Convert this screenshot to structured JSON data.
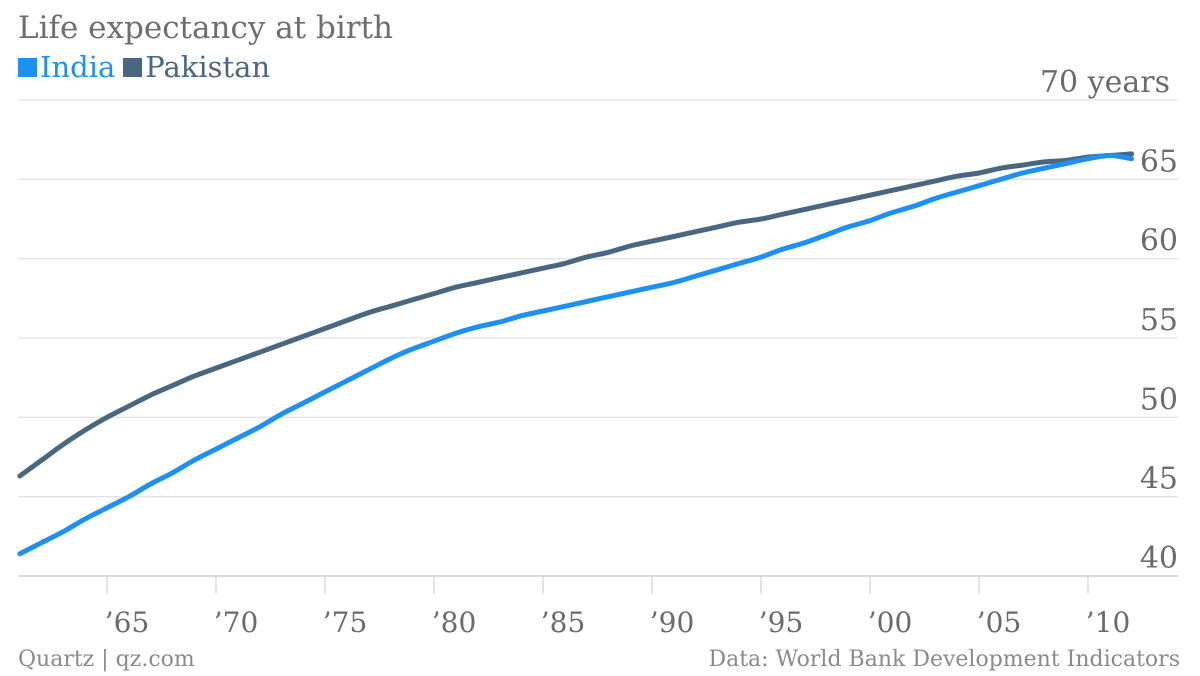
{
  "chart_data": {
    "type": "line",
    "title": "Life expectancy at birth",
    "y_unit_label": "70 years",
    "x": [
      1961,
      1962,
      1963,
      1964,
      1965,
      1966,
      1967,
      1968,
      1969,
      1970,
      1971,
      1972,
      1973,
      1974,
      1975,
      1976,
      1977,
      1978,
      1979,
      1980,
      1981,
      1982,
      1983,
      1984,
      1985,
      1986,
      1987,
      1988,
      1989,
      1990,
      1991,
      1992,
      1993,
      1994,
      1995,
      1996,
      1997,
      1998,
      1999,
      2000,
      2001,
      2002,
      2003,
      2004,
      2005,
      2006,
      2007,
      2008,
      2009,
      2010,
      2011,
      2012
    ],
    "series": [
      {
        "name": "India",
        "color": "#1e90f0",
        "values": [
          41.4,
          42.1,
          42.8,
          43.6,
          44.3,
          45.0,
          45.8,
          46.5,
          47.3,
          48.0,
          48.7,
          49.4,
          50.2,
          50.9,
          51.6,
          52.3,
          53.0,
          53.7,
          54.3,
          54.8,
          55.3,
          55.7,
          56.0,
          56.4,
          56.7,
          57.0,
          57.3,
          57.6,
          57.9,
          58.2,
          58.5,
          58.9,
          59.3,
          59.7,
          60.1,
          60.6,
          61.0,
          61.5,
          62.0,
          62.4,
          62.9,
          63.3,
          63.8,
          64.2,
          64.6,
          65.0,
          65.4,
          65.7,
          66.0,
          66.3,
          66.5,
          66.3
        ]
      },
      {
        "name": "Pakistan",
        "color": "#4a6781",
        "values": [
          46.3,
          47.3,
          48.3,
          49.2,
          50.0,
          50.7,
          51.4,
          52.0,
          52.6,
          53.1,
          53.6,
          54.1,
          54.6,
          55.1,
          55.6,
          56.1,
          56.6,
          57.0,
          57.4,
          57.8,
          58.2,
          58.5,
          58.8,
          59.1,
          59.4,
          59.7,
          60.1,
          60.4,
          60.8,
          61.1,
          61.4,
          61.7,
          62.0,
          62.3,
          62.5,
          62.8,
          63.1,
          63.4,
          63.7,
          64.0,
          64.3,
          64.6,
          64.9,
          65.2,
          65.4,
          65.7,
          65.9,
          66.1,
          66.2,
          66.4,
          66.5,
          66.6
        ]
      }
    ],
    "ylim": [
      40,
      70
    ],
    "yticks": [
      40,
      45,
      50,
      55,
      60,
      65
    ],
    "ytick_labels": [
      "40",
      "45",
      "50",
      "55",
      "60",
      "65"
    ],
    "xticks": [
      1965,
      1970,
      1975,
      1980,
      1985,
      1990,
      1995,
      2000,
      2005,
      2010
    ],
    "xtick_labels": [
      "’65",
      "’70",
      "’75",
      "’80",
      "’85",
      "’90",
      "’95",
      "’00",
      "’05",
      "’10"
    ],
    "xlim": [
      1961,
      2012
    ],
    "grid": true
  },
  "footer": {
    "source_left": "Quartz | qz.com",
    "source_right": "Data: World Bank Development Indicators"
  }
}
